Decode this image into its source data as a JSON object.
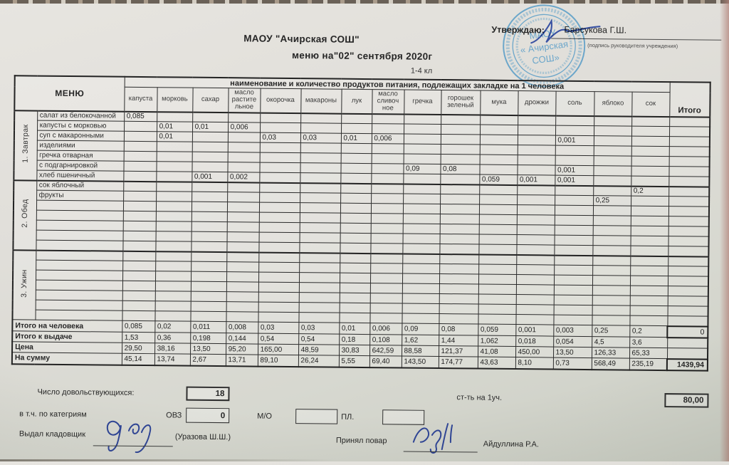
{
  "header": {
    "org_title": "МАОУ \"Ачирская СОШ\"",
    "menu_title": "меню на\"02\" сентября 2020г",
    "grade": "1-4 кл",
    "approve_label": "Утверждаю:",
    "approver_name": "Барсукова Г.Ш.",
    "approve_caption": "(подпись руководителя учреждения)"
  },
  "stamp": {
    "line1": "МАОУ",
    "line2": "« Ачирская",
    "line3": "СОШ»",
    "ink_color": "#5b9ec8"
  },
  "table": {
    "menu_header": "МЕНЮ",
    "products_header": "наименование и количество продуктов питания, подлежащих закладке на 1 человека",
    "total_header": "Итого",
    "columns": [
      "капуста",
      "морковь",
      "сахар",
      "масло\nрастите\nльное",
      "окорочка",
      "макароны",
      "лук",
      "масло\nсливоч\nное",
      "гречка",
      "горошек\nзеленый",
      "мука",
      "дрожжи",
      "соль",
      "яблоко",
      "сок"
    ],
    "sections": [
      {
        "label": "1. Завтрак",
        "blank_rows": 0,
        "rows": [
          {
            "name": "салат из белокочанной",
            "cells": [
              "0,085",
              "",
              "",
              "",
              "",
              "",
              "",
              "",
              "",
              "",
              "",
              "",
              "",
              "",
              ""
            ]
          },
          {
            "name": "капусты с морковью",
            "cells": [
              "",
              "0,01",
              "0,01",
              "0,006",
              "",
              "",
              "",
              "",
              "",
              "",
              "",
              "",
              "",
              "",
              ""
            ]
          },
          {
            "name": "суп с макаронными",
            "cells": [
              "",
              "0,01",
              "",
              "",
              "0,03",
              "0,03",
              "0,01",
              "0,006",
              "",
              "",
              "",
              "",
              "0,001",
              "",
              ""
            ]
          },
          {
            "name": "изделиями",
            "cells": [
              "",
              "",
              "",
              "",
              "",
              "",
              "",
              "",
              "",
              "",
              "",
              "",
              "",
              "",
              ""
            ]
          },
          {
            "name": "гречка отварная",
            "cells": [
              "",
              "",
              "",
              "",
              "",
              "",
              "",
              "",
              "",
              "",
              "",
              "",
              "",
              "",
              ""
            ]
          },
          {
            "name": "с подгарнировкой",
            "cells": [
              "",
              "",
              "",
              "",
              "",
              "",
              "",
              "",
              "0,09",
              "0,08",
              "",
              "",
              "0,001",
              "",
              ""
            ]
          },
          {
            "name": "хлеб пшеничный",
            "cells": [
              "",
              "",
              "0,001",
              "0,002",
              "",
              "",
              "",
              "",
              "",
              "",
              "0,059",
              "0,001",
              "0,001",
              "",
              ""
            ]
          }
        ]
      },
      {
        "label": "2. Обед",
        "blank_rows": 5,
        "rows": [
          {
            "name": "сок яблочный",
            "cells": [
              "",
              "",
              "",
              "",
              "",
              "",
              "",
              "",
              "",
              "",
              "",
              "",
              "",
              "",
              "0,2"
            ]
          },
          {
            "name": "фрукты",
            "cells": [
              "",
              "",
              "",
              "",
              "",
              "",
              "",
              "",
              "",
              "",
              "",
              "",
              "",
              "0,25",
              ""
            ]
          }
        ]
      },
      {
        "label": "3. Ужин",
        "blank_rows": 7,
        "rows": []
      }
    ],
    "summary": [
      {
        "label": "Итого на человека",
        "cells": [
          "0,085",
          "0,02",
          "0,011",
          "0,008",
          "0,03",
          "0,03",
          "0,01",
          "0,006",
          "0,09",
          "0,08",
          "0,059",
          "0,001",
          "0,003",
          "0,25",
          "0,2"
        ],
        "total": "0"
      },
      {
        "label": "Итого к выдаче",
        "cells": [
          "1,53",
          "0,36",
          "0,198",
          "0,144",
          "0,54",
          "0,54",
          "0,18",
          "0,108",
          "1,62",
          "1,44",
          "1,062",
          "0,018",
          "0,054",
          "4,5",
          "3,6"
        ],
        "total": ""
      },
      {
        "label": "Цена",
        "cells": [
          "29,50",
          "38,16",
          "13,50",
          "95,20",
          "165,00",
          "48,59",
          "30,83",
          "642,59",
          "88,58",
          "121,37",
          "41,08",
          "450,00",
          "13,50",
          "126,33",
          "65,33"
        ],
        "total": ""
      },
      {
        "label": "На сумму",
        "cells": [
          "45,14",
          "13,74",
          "2,67",
          "13,71",
          "89,10",
          "26,24",
          "5,55",
          "69,40",
          "143,50",
          "174,77",
          "43,63",
          "8,10",
          "0,73",
          "568,49",
          "235,19"
        ],
        "total": "1439,94"
      }
    ],
    "unit_cost_label": "ст-ть на 1уч.",
    "unit_cost_value": "80,00"
  },
  "footer": {
    "count_label": "Число довольствующихся:",
    "count_value": "18",
    "category_label": "в т.ч. по категриям",
    "ovz_label": "ОВЗ",
    "ovz_value": "0",
    "mo_label": "М/О",
    "mo_value": "",
    "pl_label": "ПЛ.",
    "pl_value": "",
    "issued_label": "Выдал кладовщик",
    "issued_name": "(Уразова Ш.Ш.)",
    "received_label": "Принял повар",
    "received_name": "Айдуллина Р.А."
  }
}
